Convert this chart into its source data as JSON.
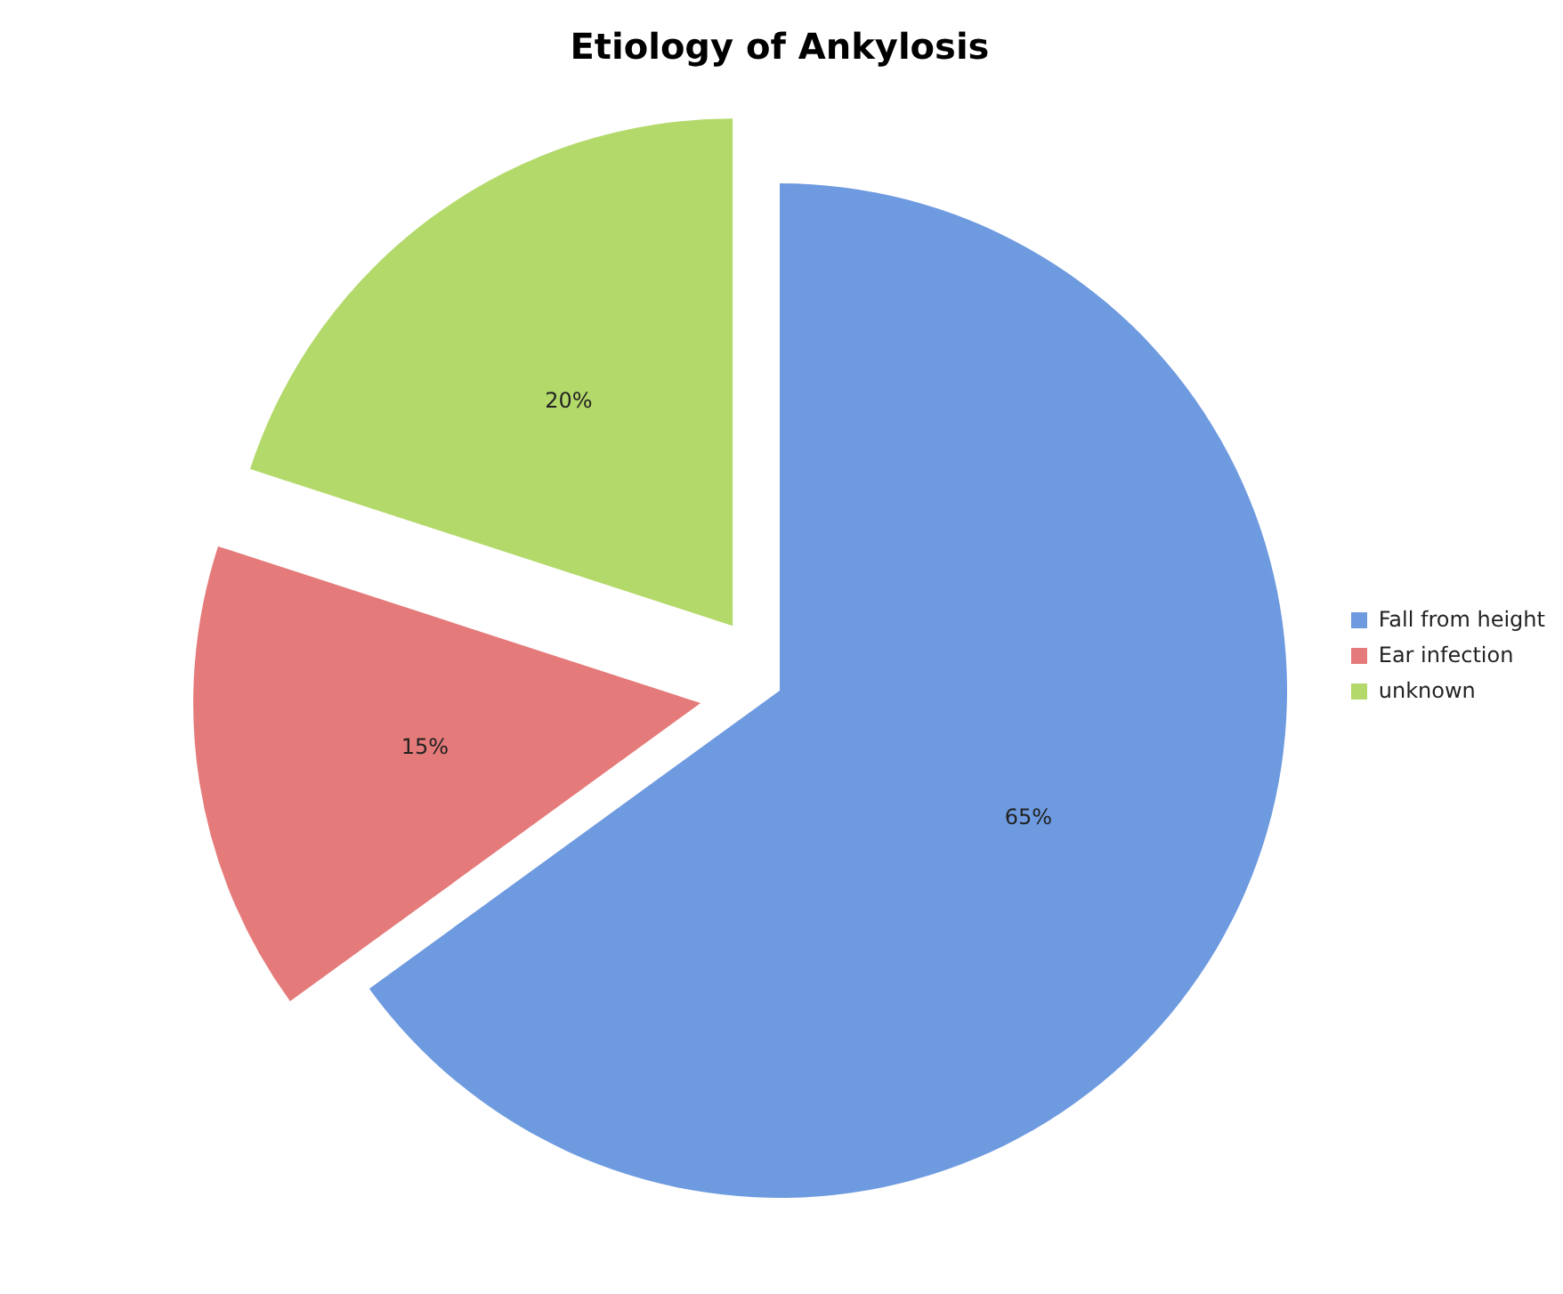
{
  "chart_data": {
    "type": "pie",
    "title": "Etiology of Ankylosis",
    "categories": [
      "Fall from height",
      "Ear infection",
      "unknown"
    ],
    "values": [
      65,
      15,
      20
    ],
    "colors": [
      "#6e9ae0",
      "#e57a7a",
      "#b3d96a"
    ],
    "data_labels": true,
    "value_labels": [
      "65%",
      "15%",
      "20%"
    ],
    "legend": "right"
  }
}
